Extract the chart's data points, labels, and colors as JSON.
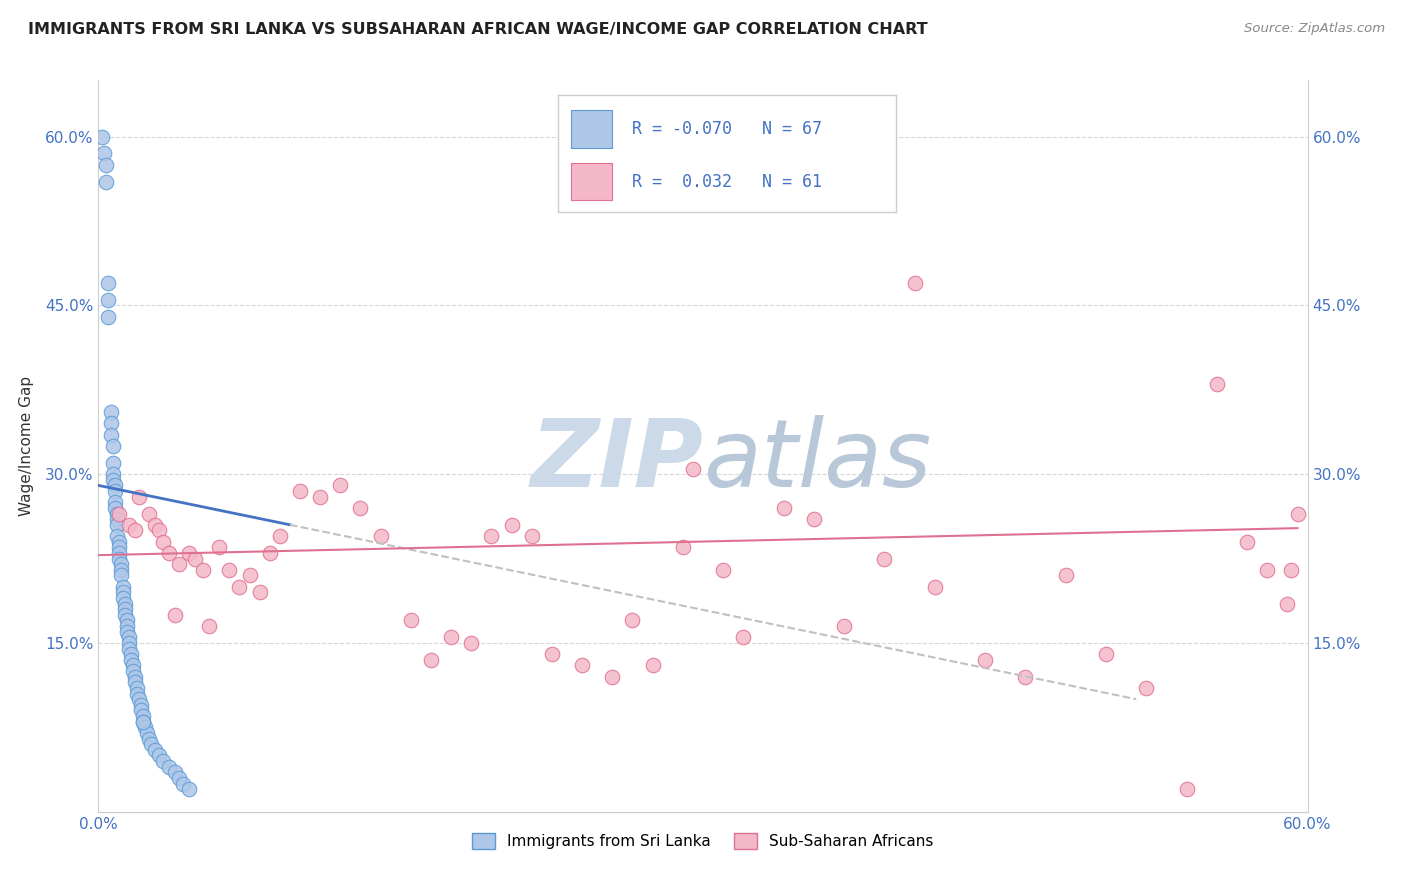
{
  "title": "IMMIGRANTS FROM SRI LANKA VS SUBSAHARAN AFRICAN WAGE/INCOME GAP CORRELATION CHART",
  "source": "Source: ZipAtlas.com",
  "ylabel": "Wage/Income Gap",
  "legend_label1": "Immigrants from Sri Lanka",
  "legend_label2": "Sub-Saharan Africans",
  "R1": "-0.070",
  "N1": "67",
  "R2": "0.032",
  "N2": "61",
  "color_blue_fill": "#aec6e8",
  "color_blue_edge": "#5b9bd5",
  "color_pink_fill": "#f4b8c8",
  "color_pink_edge": "#e07090",
  "color_blue_line": "#4472C4",
  "color_pink_line": "#e07090",
  "color_dashed": "#c0c0c0",
  "color_axis": "#4472C4",
  "color_grid": "#d8d8d8",
  "color_watermark": "#ccd9e8",
  "x_min": 0.0,
  "x_max": 0.6,
  "y_min": 0.0,
  "y_max": 0.65,
  "yticks": [
    0.15,
    0.3,
    0.45,
    0.6
  ],
  "ytick_labels": [
    "15.0%",
    "30.0%",
    "45.0%",
    "60.0%"
  ],
  "blue_x": [
    0.002,
    0.003,
    0.004,
    0.004,
    0.005,
    0.005,
    0.005,
    0.006,
    0.006,
    0.006,
    0.007,
    0.007,
    0.007,
    0.007,
    0.008,
    0.008,
    0.008,
    0.008,
    0.009,
    0.009,
    0.009,
    0.009,
    0.01,
    0.01,
    0.01,
    0.01,
    0.011,
    0.011,
    0.011,
    0.012,
    0.012,
    0.012,
    0.013,
    0.013,
    0.013,
    0.014,
    0.014,
    0.014,
    0.015,
    0.015,
    0.015,
    0.016,
    0.016,
    0.017,
    0.017,
    0.018,
    0.018,
    0.019,
    0.019,
    0.02,
    0.021,
    0.021,
    0.022,
    0.022,
    0.023,
    0.024,
    0.025,
    0.026,
    0.028,
    0.03,
    0.032,
    0.035,
    0.038,
    0.04,
    0.042,
    0.045,
    0.022
  ],
  "blue_y": [
    0.6,
    0.585,
    0.575,
    0.56,
    0.47,
    0.455,
    0.44,
    0.355,
    0.345,
    0.335,
    0.325,
    0.31,
    0.3,
    0.295,
    0.29,
    0.285,
    0.275,
    0.27,
    0.265,
    0.26,
    0.255,
    0.245,
    0.24,
    0.235,
    0.23,
    0.225,
    0.22,
    0.215,
    0.21,
    0.2,
    0.195,
    0.19,
    0.185,
    0.18,
    0.175,
    0.17,
    0.165,
    0.16,
    0.155,
    0.15,
    0.145,
    0.14,
    0.135,
    0.13,
    0.125,
    0.12,
    0.115,
    0.11,
    0.105,
    0.1,
    0.095,
    0.09,
    0.085,
    0.08,
    0.075,
    0.07,
    0.065,
    0.06,
    0.055,
    0.05,
    0.045,
    0.04,
    0.035,
    0.03,
    0.025,
    0.02,
    0.08
  ],
  "pink_x": [
    0.01,
    0.015,
    0.018,
    0.02,
    0.025,
    0.028,
    0.03,
    0.032,
    0.035,
    0.038,
    0.04,
    0.045,
    0.048,
    0.052,
    0.055,
    0.06,
    0.065,
    0.07,
    0.075,
    0.08,
    0.085,
    0.09,
    0.1,
    0.11,
    0.12,
    0.13,
    0.14,
    0.155,
    0.165,
    0.175,
    0.185,
    0.195,
    0.205,
    0.215,
    0.225,
    0.24,
    0.255,
    0.265,
    0.275,
    0.29,
    0.31,
    0.32,
    0.34,
    0.355,
    0.37,
    0.39,
    0.415,
    0.44,
    0.46,
    0.48,
    0.5,
    0.52,
    0.54,
    0.555,
    0.57,
    0.58,
    0.59,
    0.592,
    0.595,
    0.295,
    0.405
  ],
  "pink_y": [
    0.265,
    0.255,
    0.25,
    0.28,
    0.265,
    0.255,
    0.25,
    0.24,
    0.23,
    0.175,
    0.22,
    0.23,
    0.225,
    0.215,
    0.165,
    0.235,
    0.215,
    0.2,
    0.21,
    0.195,
    0.23,
    0.245,
    0.285,
    0.28,
    0.29,
    0.27,
    0.245,
    0.17,
    0.135,
    0.155,
    0.15,
    0.245,
    0.255,
    0.245,
    0.14,
    0.13,
    0.12,
    0.17,
    0.13,
    0.235,
    0.215,
    0.155,
    0.27,
    0.26,
    0.165,
    0.225,
    0.2,
    0.135,
    0.12,
    0.21,
    0.14,
    0.11,
    0.02,
    0.38,
    0.24,
    0.215,
    0.185,
    0.215,
    0.265,
    0.305,
    0.47
  ],
  "blue_line_x": [
    0.0,
    0.095
  ],
  "blue_line_y": [
    0.29,
    0.255
  ],
  "dashed_line_x": [
    0.095,
    0.515
  ],
  "dashed_line_y": [
    0.255,
    0.1
  ],
  "pink_line_x": [
    0.0,
    0.595
  ],
  "pink_line_y": [
    0.228,
    0.252
  ]
}
